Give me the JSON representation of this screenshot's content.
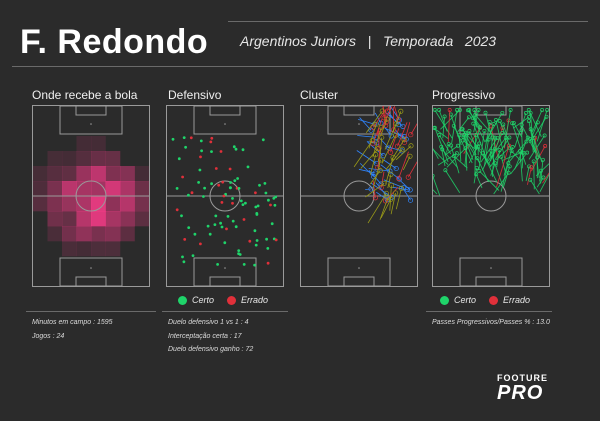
{
  "header": {
    "player": "F. Redondo",
    "club": "Argentinos Juniors",
    "separator": "|",
    "season_label": "Temporada",
    "season": "2023"
  },
  "panels": {
    "heatmap": {
      "title": "Onde recebe a bola"
    },
    "defensive": {
      "title": "Defensivo"
    },
    "cluster": {
      "title": "Cluster"
    },
    "progressive": {
      "title": "Progressivo"
    }
  },
  "legend": {
    "success_label": "Certo",
    "fail_label": "Errado",
    "success_color": "#1fd46a",
    "fail_color": "#e0303a"
  },
  "stats": {
    "minutes": "Minutos em campo : 1595",
    "games": "Jogos : 24",
    "duel_1v1": "Duelo defensivo 1 vs 1 :  4",
    "interceptions": "Interceptação certa :  17",
    "duels_won": "Duelo defensivo ganho :  72",
    "progressive_passes": "Passes Progressivos/Passes % :  13.0"
  },
  "brand": {
    "line1": "FOOTURE",
    "line2": "PRO"
  },
  "colors": {
    "background": "#2b2b2b",
    "heat": "#ff3c8c",
    "cluster_blue": "#2f86ff",
    "cluster_red": "#e0303a",
    "cluster_olive": "#9a9a18",
    "arrow_green": "#1fd46a"
  }
}
